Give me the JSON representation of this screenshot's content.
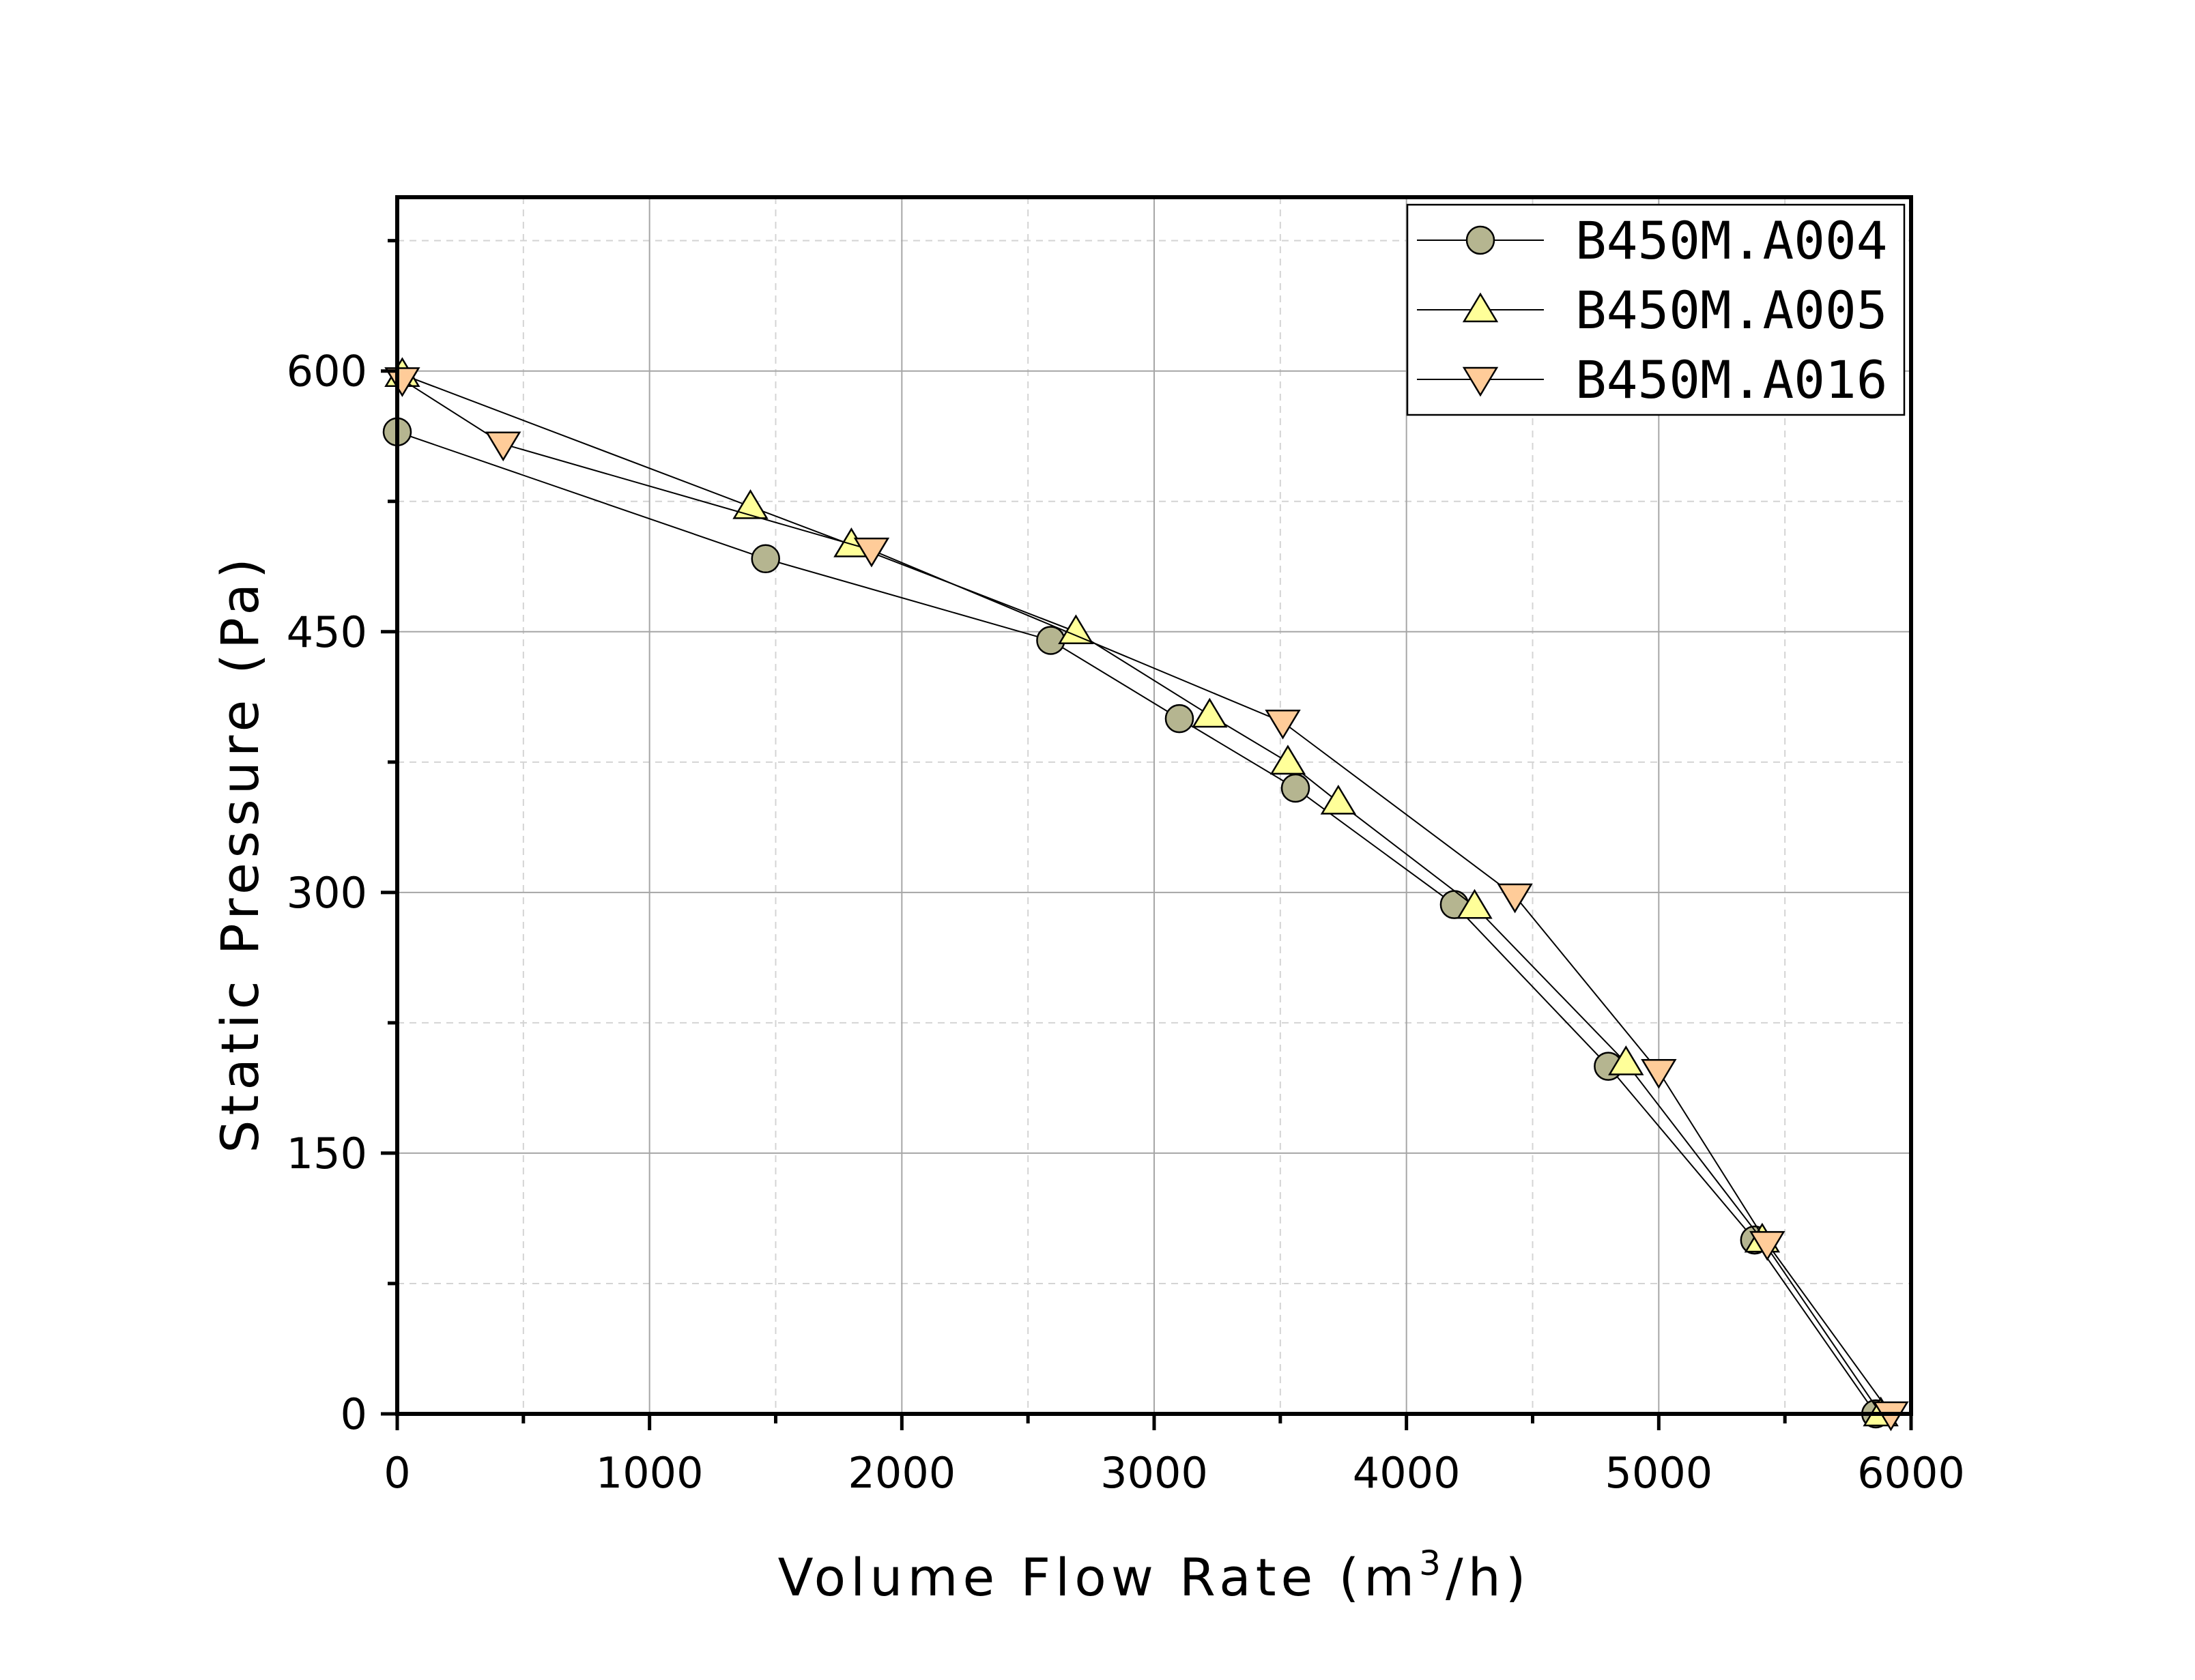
{
  "chart_data": {
    "type": "line",
    "xlabel": "Volume Flow Rate (m",
    "xlabel_superscript": "3",
    "xlabel_suffix": "/h)",
    "ylabel": "Static Pressure (Pa)",
    "xlim": [
      0,
      6000
    ],
    "ylim": [
      0,
      700
    ],
    "x_ticks": [
      0,
      1000,
      2000,
      3000,
      4000,
      5000,
      6000
    ],
    "x_tick_labels": [
      "0",
      "1000",
      "2000",
      "3000",
      "4000",
      "5000",
      "6000"
    ],
    "y_ticks": [
      0,
      150,
      300,
      450,
      600
    ],
    "y_tick_labels": [
      "0",
      "150",
      "300",
      "450",
      "600"
    ],
    "x_minor_ticks": [
      500,
      1500,
      2500,
      3500,
      4500,
      5500
    ],
    "y_minor_ticks": [
      75,
      225,
      375,
      525,
      675
    ],
    "grid": true,
    "legend_position": "top-right",
    "series": [
      {
        "name": "B450M.A004",
        "marker": "circle",
        "color": "#b5b590",
        "x": [
          0,
          1460,
          2590,
          3100,
          3560,
          4190,
          4800,
          5380,
          5860
        ],
        "y": [
          565,
          492,
          445,
          400,
          360,
          293,
          200,
          100,
          0
        ]
      },
      {
        "name": "B450M.A005",
        "marker": "triangle-up",
        "color": "#ffff99",
        "x": [
          20,
          1400,
          1800,
          2690,
          3220,
          3530,
          3730,
          4270,
          4870,
          5410,
          5880
        ],
        "y": [
          598,
          522,
          500,
          450,
          402,
          375,
          352,
          292,
          202,
          100,
          0
        ]
      },
      {
        "name": "B450M.A016",
        "marker": "triangle-down",
        "color": "#ffcc99",
        "x": [
          20,
          420,
          1880,
          3510,
          4430,
          5000,
          5430,
          5920
        ],
        "y": [
          595,
          558,
          497,
          398,
          298,
          197,
          98,
          0
        ]
      }
    ]
  }
}
